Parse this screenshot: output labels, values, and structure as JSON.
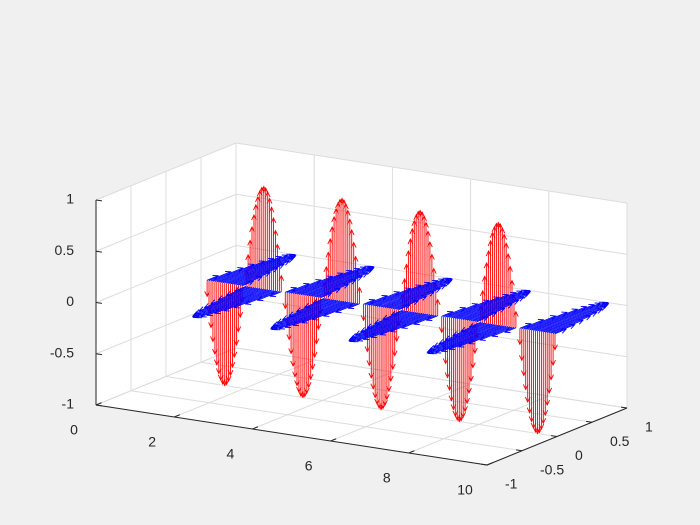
{
  "chart_data": {
    "type": "line",
    "view": "3d",
    "title": "",
    "xlabel": "",
    "ylabel": "",
    "zlabel": "",
    "xlim": [
      0,
      10
    ],
    "ylim": [
      -1,
      1
    ],
    "zlim": [
      -1,
      1
    ],
    "grid": true,
    "x_ticks": [
      "0",
      "2",
      "4",
      "6",
      "8",
      "10"
    ],
    "y_ticks": [
      "-1",
      "-0.5",
      "0",
      "0.5",
      "1"
    ],
    "z_ticks": [
      "-1",
      "-0.5",
      "0",
      "0.5",
      "1"
    ],
    "x_tick_values": [
      0,
      2,
      4,
      6,
      8,
      10
    ],
    "y_tick_values": [
      -1,
      -0.5,
      0,
      0.5,
      1
    ],
    "z_tick_values": [
      -1,
      -0.5,
      0,
      0.5,
      1
    ],
    "x_range": [
      1,
      10
    ],
    "sample_count": 181,
    "series": [
      {
        "component": "electric-field-vectors",
        "plane": "xz",
        "function": "sin(pi*x)",
        "color": "#ff0000"
      },
      {
        "component": "magnetic-field-vectors",
        "plane": "xy",
        "function": "-sin(pi*x)",
        "color": "#0000ff"
      }
    ]
  }
}
